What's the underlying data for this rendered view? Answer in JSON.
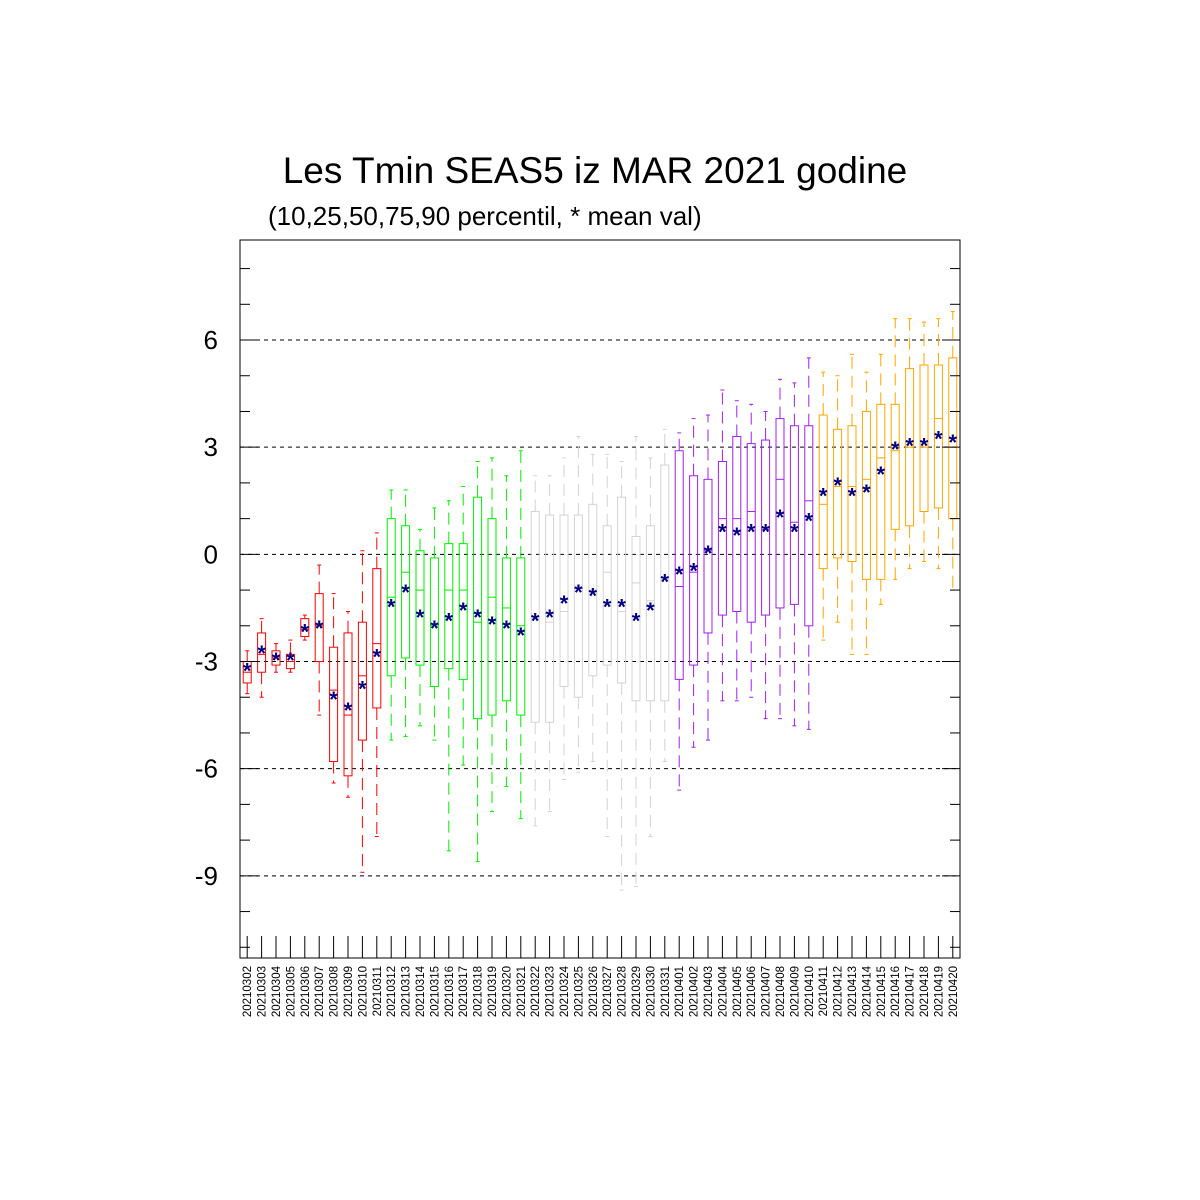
{
  "chart_data": {
    "type": "box",
    "title": "Les Tmin SEAS5 iz MAR 2021 godine",
    "subtitle": "(10,25,50,75,90 percentil, * mean val)",
    "xlabel": "",
    "ylabel": "",
    "ylim": [
      -11.3,
      8.8
    ],
    "y_ticks": [
      6,
      3,
      0,
      -3,
      -6,
      -9
    ],
    "y_tick_labels": [
      "6",
      "3",
      "0",
      "-3",
      "-6",
      "-9"
    ],
    "grid": "dashed horizontal at labelled ticks",
    "mean_color": "#000080",
    "categories": [
      "20210302",
      "20210303",
      "20210304",
      "20210305",
      "20210306",
      "20210307",
      "20210308",
      "20210309",
      "20210310",
      "20210311",
      "20210312",
      "20210313",
      "20210314",
      "20210315",
      "20210316",
      "20210317",
      "20210318",
      "20210319",
      "20210320",
      "20210321",
      "20210322",
      "20210323",
      "20210324",
      "20210325",
      "20210326",
      "20210327",
      "20210328",
      "20210329",
      "20210330",
      "20210331",
      "20210401",
      "20210402",
      "20210403",
      "20210404",
      "20210405",
      "20210406",
      "20210407",
      "20210408",
      "20210409",
      "20210410",
      "20210411",
      "20210412",
      "20210413",
      "20210414",
      "20210415",
      "20210416",
      "20210417",
      "20210418",
      "20210419",
      "20210420"
    ],
    "colors": [
      "#ff0000",
      "#ff0000",
      "#ff0000",
      "#ff0000",
      "#ff0000",
      "#ff0000",
      "#ff0000",
      "#ff0000",
      "#ff0000",
      "#ff0000",
      "#00ee00",
      "#00ee00",
      "#00ee00",
      "#00ee00",
      "#00ee00",
      "#00ee00",
      "#00ee00",
      "#00ee00",
      "#00ee00",
      "#00ee00",
      "#d3d3d3",
      "#d3d3d3",
      "#d3d3d3",
      "#d3d3d3",
      "#d3d3d3",
      "#d3d3d3",
      "#d3d3d3",
      "#d3d3d3",
      "#d3d3d3",
      "#d3d3d3",
      "#a020f0",
      "#a020f0",
      "#a020f0",
      "#a020f0",
      "#a020f0",
      "#a020f0",
      "#a020f0",
      "#a020f0",
      "#a020f0",
      "#a020f0",
      "#ffa500",
      "#ffa500",
      "#ffa500",
      "#ffa500",
      "#ffa500",
      "#ffa500",
      "#ffa500",
      "#ffa500",
      "#ffa500",
      "#ffa500"
    ],
    "p10": [
      -3.9,
      -4.0,
      -3.3,
      -3.3,
      -2.4,
      -4.5,
      -6.4,
      -6.8,
      -8.9,
      -7.9,
      -5.2,
      -5.1,
      -4.8,
      -5.2,
      -8.3,
      -5.9,
      -8.6,
      -7.2,
      -6.5,
      -7.4,
      -7.6,
      -7.2,
      -6.3,
      -6.1,
      -5.8,
      -7.9,
      -9.4,
      -9.3,
      -7.9,
      -5.8,
      -6.6,
      -5.4,
      -5.2,
      -4.1,
      -4.1,
      -4.0,
      -4.6,
      -4.6,
      -4.8,
      -4.9,
      -2.4,
      -1.9,
      -2.8,
      -2.8,
      -1.4,
      -0.7,
      -0.4,
      -0.2,
      -0.4,
      -1.0
    ],
    "p25": [
      -3.6,
      -3.3,
      -3.1,
      -3.2,
      -2.3,
      -3.0,
      -5.8,
      -6.2,
      -5.2,
      -4.3,
      -3.4,
      -2.9,
      -3.1,
      -3.7,
      -3.2,
      -3.5,
      -4.6,
      -4.5,
      -4.1,
      -4.5,
      -4.7,
      -4.7,
      -3.7,
      -4.0,
      -3.4,
      -3.1,
      -3.6,
      -4.1,
      -4.1,
      -4.1,
      -3.5,
      -3.1,
      -2.2,
      -1.7,
      -1.6,
      -1.9,
      -1.7,
      -1.5,
      -1.4,
      -2.0,
      -0.4,
      -0.1,
      -0.2,
      -0.7,
      -0.7,
      0.7,
      0.8,
      1.2,
      1.3,
      1.0
    ],
    "p50": [
      -3.3,
      -2.8,
      -2.9,
      -3.0,
      -2.1,
      -2.0,
      -3.8,
      -4.5,
      -3.4,
      -2.5,
      -1.2,
      -0.5,
      -1.0,
      -2.0,
      -1.0,
      -1.0,
      -1.9,
      -1.2,
      -1.5,
      -2.0,
      -1.8,
      -1.9,
      -1.6,
      -0.9,
      -1.0,
      -0.5,
      -1.6,
      -0.8,
      -1.3,
      -0.7,
      -0.9,
      -0.5,
      0.1,
      1.0,
      1.0,
      1.2,
      0.7,
      2.1,
      0.9,
      1.5,
      1.4,
      1.9,
      1.9,
      2.1,
      2.7,
      2.9,
      3.0,
      3.0,
      3.8,
      3.0
    ],
    "p75": [
      -3.0,
      -2.2,
      -2.7,
      -2.8,
      -1.8,
      -1.1,
      -2.6,
      -2.2,
      -1.9,
      -0.4,
      1.0,
      0.8,
      0.1,
      -0.1,
      0.3,
      0.3,
      1.6,
      1.0,
      -0.1,
      -0.1,
      1.2,
      1.1,
      1.1,
      1.1,
      1.4,
      0.8,
      1.6,
      0.5,
      0.8,
      2.5,
      2.9,
      2.2,
      2.1,
      2.6,
      3.3,
      3.1,
      3.2,
      3.8,
      3.6,
      3.6,
      3.9,
      3.5,
      3.6,
      4.0,
      4.2,
      4.2,
      5.2,
      5.3,
      5.3,
      5.5
    ],
    "p90": [
      -2.7,
      -1.8,
      -2.5,
      -2.4,
      -1.7,
      -0.3,
      -1.1,
      -1.6,
      0.1,
      0.6,
      1.8,
      1.8,
      0.7,
      1.3,
      1.5,
      1.9,
      2.6,
      2.7,
      2.2,
      2.9,
      2.2,
      2.2,
      2.7,
      3.3,
      2.8,
      2.8,
      2.6,
      3.3,
      2.7,
      3.5,
      3.4,
      3.8,
      3.9,
      4.6,
      4.3,
      4.2,
      4.0,
      4.9,
      4.8,
      5.5,
      5.1,
      5.0,
      5.6,
      5.1,
      5.6,
      6.6,
      6.6,
      6.5,
      6.6,
      6.8
    ],
    "mean": [
      -3.2,
      -2.7,
      -2.9,
      -2.9,
      -2.1,
      -2.0,
      -4.0,
      -4.3,
      -3.7,
      -2.8,
      -1.4,
      -1.0,
      -1.7,
      -2.0,
      -1.8,
      -1.5,
      -1.7,
      -1.9,
      -2.0,
      -2.2,
      -1.8,
      -1.7,
      -1.3,
      -1.0,
      -1.1,
      -1.4,
      -1.4,
      -1.8,
      -1.5,
      -0.7,
      -0.5,
      -0.4,
      0.1,
      0.7,
      0.6,
      0.7,
      0.7,
      1.1,
      0.7,
      1.0,
      1.7,
      2.0,
      1.7,
      1.8,
      2.3,
      3.0,
      3.1,
      3.1,
      3.3,
      3.2
    ]
  }
}
